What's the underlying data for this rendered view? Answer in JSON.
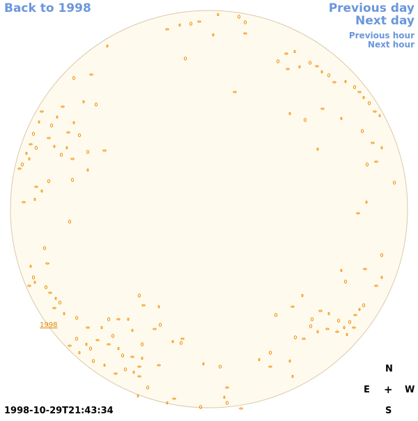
{
  "nav": {
    "back_label": "Back to 1998",
    "prev_day_label": "Previous day",
    "next_day_label": "Next day",
    "prev_hour_label": "Previous hour",
    "next_hour_label": "Next hour"
  },
  "compass": {
    "north": "N",
    "east": "E",
    "center": "+",
    "west": "W",
    "south": "S"
  },
  "timestamp": "1998-10-29T21:43:34",
  "region_label": "1998",
  "colors": {
    "disk_fill": "#fffaee",
    "disk_stroke": "#d9c9a8",
    "feature": "#f08c00",
    "link": "#6a96dc"
  }
}
